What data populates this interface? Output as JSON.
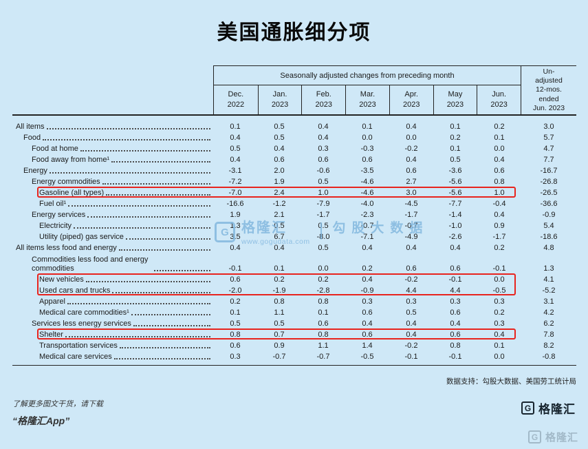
{
  "page": {
    "title": "美国通胀细分项",
    "background": "#cfe8f7",
    "highlight_color": "#e8231d"
  },
  "chart_data": {
    "type": "table",
    "title": "美国通胀细分项",
    "group_header": "Seasonally adjusted changes from preceding month",
    "unadjusted_header": "Un-\nadjusted\n12-mos.\nended\nJun. 2023",
    "columns": [
      {
        "month": "Dec.",
        "year": "2022"
      },
      {
        "month": "Jan.",
        "year": "2023"
      },
      {
        "month": "Feb.",
        "year": "2023"
      },
      {
        "month": "Mar.",
        "year": "2023"
      },
      {
        "month": "Apr.",
        "year": "2023"
      },
      {
        "month": "May",
        "year": "2023"
      },
      {
        "month": "Jun.",
        "year": "2023"
      }
    ],
    "rows": [
      {
        "label": "All items",
        "indent": 0,
        "values": [
          0.1,
          0.5,
          0.4,
          0.1,
          0.4,
          0.1,
          0.2
        ],
        "unadjusted": 3.0,
        "highlight": null
      },
      {
        "label": "Food",
        "indent": 1,
        "values": [
          0.4,
          0.5,
          0.4,
          0.0,
          0.0,
          0.2,
          0.1
        ],
        "unadjusted": 5.7,
        "highlight": null
      },
      {
        "label": "Food at home",
        "indent": 2,
        "values": [
          0.5,
          0.4,
          0.3,
          -0.3,
          -0.2,
          0.1,
          0.0
        ],
        "unadjusted": 4.7,
        "highlight": null
      },
      {
        "label": "Food away from home¹",
        "indent": 2,
        "values": [
          0.4,
          0.6,
          0.6,
          0.6,
          0.4,
          0.5,
          0.4
        ],
        "unadjusted": 7.7,
        "highlight": null
      },
      {
        "label": "Energy",
        "indent": 1,
        "values": [
          -3.1,
          2.0,
          -0.6,
          -3.5,
          0.6,
          -3.6,
          0.6
        ],
        "unadjusted": -16.7,
        "highlight": null
      },
      {
        "label": "Energy commodities",
        "indent": 2,
        "values": [
          -7.2,
          1.9,
          0.5,
          -4.6,
          2.7,
          -5.6,
          0.8
        ],
        "unadjusted": -26.8,
        "highlight": null
      },
      {
        "label": "Gasoline (all types)",
        "indent": 3,
        "values": [
          -7.0,
          2.4,
          1.0,
          -4.6,
          3.0,
          -5.6,
          1.0
        ],
        "unadjusted": -26.5,
        "highlight": "single"
      },
      {
        "label": "Fuel oil¹",
        "indent": 3,
        "values": [
          -16.6,
          -1.2,
          -7.9,
          -4.0,
          -4.5,
          -7.7,
          -0.4
        ],
        "unadjusted": -36.6,
        "highlight": null
      },
      {
        "label": "Energy services",
        "indent": 2,
        "values": [
          1.9,
          2.1,
          -1.7,
          -2.3,
          -1.7,
          -1.4,
          0.4
        ],
        "unadjusted": -0.9,
        "highlight": null
      },
      {
        "label": "Electricity",
        "indent": 3,
        "values": [
          1.3,
          0.5,
          0.5,
          -0.7,
          -0.7,
          -1.0,
          0.9
        ],
        "unadjusted": 5.4,
        "highlight": null
      },
      {
        "label": "Utility (piped) gas service",
        "indent": 3,
        "values": [
          3.5,
          6.7,
          -8.0,
          -7.1,
          -4.9,
          -2.6,
          -1.7
        ],
        "unadjusted": -18.6,
        "highlight": null
      },
      {
        "label": "All items less food and energy",
        "indent": 0,
        "values": [
          0.4,
          0.4,
          0.5,
          0.4,
          0.4,
          0.4,
          0.2
        ],
        "unadjusted": 4.8,
        "highlight": null
      },
      {
        "label": "Commodities less food and energy commodities",
        "indent": 2,
        "two_line": true,
        "values": [
          -0.1,
          0.1,
          0.0,
          0.2,
          0.6,
          0.6,
          -0.1
        ],
        "unadjusted": 1.3,
        "highlight": null
      },
      {
        "label": "New vehicles",
        "indent": 3,
        "values": [
          0.6,
          0.2,
          0.2,
          0.4,
          -0.2,
          -0.1,
          0.0
        ],
        "unadjusted": 4.1,
        "highlight": "top"
      },
      {
        "label": "Used cars and trucks",
        "indent": 3,
        "values": [
          -2.0,
          -1.9,
          -2.8,
          -0.9,
          4.4,
          4.4,
          -0.5
        ],
        "unadjusted": -5.2,
        "highlight": "bottom"
      },
      {
        "label": "Apparel",
        "indent": 3,
        "values": [
          0.2,
          0.8,
          0.8,
          0.3,
          0.3,
          0.3,
          0.3
        ],
        "unadjusted": 3.1,
        "highlight": null
      },
      {
        "label": "Medical care commodities¹",
        "indent": 3,
        "values": [
          0.1,
          1.1,
          0.1,
          0.6,
          0.5,
          0.6,
          0.2
        ],
        "unadjusted": 4.2,
        "highlight": null
      },
      {
        "label": "Services less energy services",
        "indent": 2,
        "values": [
          0.5,
          0.5,
          0.6,
          0.4,
          0.4,
          0.4,
          0.3
        ],
        "unadjusted": 6.2,
        "highlight": null
      },
      {
        "label": "Shelter",
        "indent": 3,
        "values": [
          0.8,
          0.7,
          0.8,
          0.6,
          0.4,
          0.6,
          0.4
        ],
        "unadjusted": 7.8,
        "highlight": "single"
      },
      {
        "label": "Transportation services",
        "indent": 3,
        "values": [
          0.6,
          0.9,
          1.1,
          1.4,
          -0.2,
          0.8,
          0.1
        ],
        "unadjusted": 8.2,
        "highlight": null
      },
      {
        "label": "Medical care services",
        "indent": 3,
        "values": [
          0.3,
          -0.7,
          -0.7,
          -0.5,
          -0.1,
          -0.1,
          0.0
        ],
        "unadjusted": -0.8,
        "highlight": null
      }
    ]
  },
  "footer": {
    "source": "数据支持：勾股大数据、美国劳工统计局"
  },
  "promo": {
    "line1": "了解更多图文干货，请下载",
    "line2": "“格隆汇App”"
  },
  "watermark": {
    "g": "G",
    "brand": "格隆汇",
    "separator": "|",
    "gogu": "勾股大数据",
    "url": "www.gogudata.com"
  },
  "logo": {
    "g": "G",
    "text": "格隆汇"
  }
}
